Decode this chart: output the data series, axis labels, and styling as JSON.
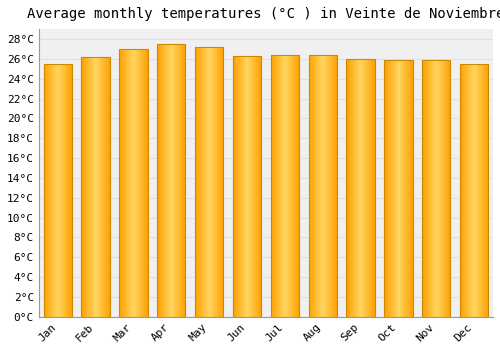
{
  "title": "Average monthly temperatures (°C ) in Veinte de Noviembre",
  "months": [
    "Jan",
    "Feb",
    "Mar",
    "Apr",
    "May",
    "Jun",
    "Jul",
    "Aug",
    "Sep",
    "Oct",
    "Nov",
    "Dec"
  ],
  "values": [
    25.5,
    26.2,
    27.0,
    27.5,
    27.2,
    26.3,
    26.4,
    26.4,
    26.0,
    25.9,
    25.9,
    25.5
  ],
  "bar_color_center": "#FFD060",
  "bar_color_edge": "#FFA000",
  "bar_outline_color": "#CC8800",
  "background_color": "#ffffff",
  "plot_bg_color": "#f0f0f0",
  "grid_color": "#e0e0e0",
  "ylim": [
    0,
    29
  ],
  "ytick_step": 2,
  "title_fontsize": 10,
  "tick_fontsize": 8,
  "font_family": "monospace"
}
